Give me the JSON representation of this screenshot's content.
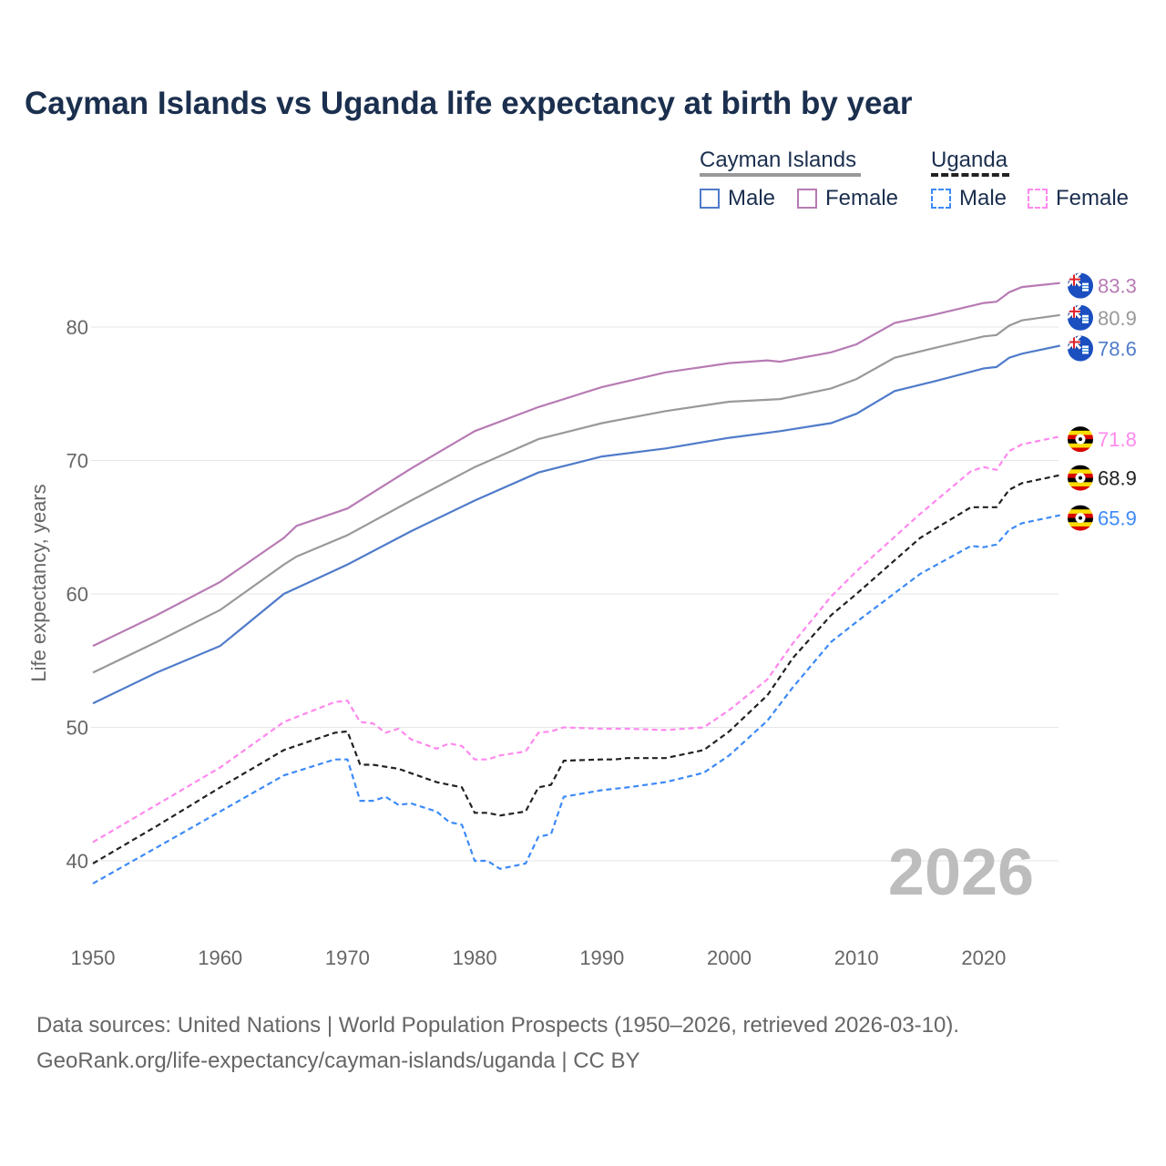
{
  "title": "Cayman Islands vs Uganda life expectancy at birth by year",
  "legend": {
    "groups": [
      {
        "name": "Cayman Islands",
        "items": [
          "Male",
          "Female"
        ]
      },
      {
        "name": "Uganda",
        "items": [
          "Male",
          "Female"
        ]
      }
    ]
  },
  "watermark_year": "2026",
  "source_lines": [
    "Data sources: United Nations | World Population Prospects (1950–2026, retrieved 2026-03-10).",
    "GeoRank.org/life-expectancy/cayman-islands/uganda | CC BY"
  ],
  "chart_data": {
    "type": "line",
    "title": "Cayman Islands vs Uganda life expectancy at birth by year",
    "xlabel": "",
    "ylabel": "Life expectancy, years",
    "xlim": [
      1950,
      2026
    ],
    "ylim": [
      35,
      86
    ],
    "x_ticks": [
      1950,
      1960,
      1970,
      1980,
      1990,
      2000,
      2010,
      2020
    ],
    "y_ticks": [
      40,
      50,
      60,
      70,
      80
    ],
    "grid": true,
    "series": [
      {
        "name": "Cayman Islands Female",
        "country": "Cayman Islands",
        "color": "#b77bb4",
        "dash": false,
        "end_label": "83.3",
        "points": [
          [
            1950,
            56.1
          ],
          [
            1955,
            58.4
          ],
          [
            1960,
            60.9
          ],
          [
            1965,
            64.2
          ],
          [
            1966,
            65.1
          ],
          [
            1970,
            66.4
          ],
          [
            1975,
            69.4
          ],
          [
            1980,
            72.2
          ],
          [
            1985,
            74.0
          ],
          [
            1990,
            75.5
          ],
          [
            1995,
            76.6
          ],
          [
            2000,
            77.3
          ],
          [
            2003,
            77.5
          ],
          [
            2004,
            77.4
          ],
          [
            2008,
            78.1
          ],
          [
            2010,
            78.7
          ],
          [
            2013,
            80.3
          ],
          [
            2016,
            80.9
          ],
          [
            2020,
            81.8
          ],
          [
            2021,
            81.9
          ],
          [
            2022,
            82.6
          ],
          [
            2023,
            83.0
          ],
          [
            2026,
            83.3
          ]
        ]
      },
      {
        "name": "Cayman Islands Total",
        "country": "Cayman Islands",
        "color": "#999999",
        "dash": false,
        "end_label": "80.9",
        "points": [
          [
            1950,
            54.1
          ],
          [
            1955,
            56.4
          ],
          [
            1960,
            58.8
          ],
          [
            1965,
            62.2
          ],
          [
            1966,
            62.8
          ],
          [
            1970,
            64.4
          ],
          [
            1975,
            67.0
          ],
          [
            1980,
            69.5
          ],
          [
            1985,
            71.6
          ],
          [
            1990,
            72.8
          ],
          [
            1995,
            73.7
          ],
          [
            2000,
            74.4
          ],
          [
            2004,
            74.6
          ],
          [
            2008,
            75.4
          ],
          [
            2010,
            76.1
          ],
          [
            2013,
            77.7
          ],
          [
            2016,
            78.4
          ],
          [
            2020,
            79.3
          ],
          [
            2021,
            79.4
          ],
          [
            2022,
            80.1
          ],
          [
            2023,
            80.5
          ],
          [
            2026,
            80.9
          ]
        ]
      },
      {
        "name": "Cayman Islands Male",
        "country": "Cayman Islands",
        "color": "#4f7bca",
        "dash": false,
        "end_label": "78.6",
        "points": [
          [
            1950,
            51.8
          ],
          [
            1955,
            54.1
          ],
          [
            1960,
            56.1
          ],
          [
            1965,
            60.0
          ],
          [
            1970,
            62.2
          ],
          [
            1975,
            64.7
          ],
          [
            1980,
            67.0
          ],
          [
            1985,
            69.1
          ],
          [
            1990,
            70.3
          ],
          [
            1995,
            70.9
          ],
          [
            2000,
            71.7
          ],
          [
            2004,
            72.2
          ],
          [
            2008,
            72.8
          ],
          [
            2010,
            73.5
          ],
          [
            2013,
            75.2
          ],
          [
            2016,
            75.9
          ],
          [
            2020,
            76.9
          ],
          [
            2021,
            77.0
          ],
          [
            2022,
            77.7
          ],
          [
            2023,
            78.0
          ],
          [
            2026,
            78.6
          ]
        ]
      },
      {
        "name": "Uganda Female",
        "country": "Uganda",
        "color": "#ff88ee",
        "dash": true,
        "end_label": "71.8",
        "points": [
          [
            1950,
            41.4
          ],
          [
            1955,
            44.2
          ],
          [
            1960,
            47.0
          ],
          [
            1965,
            50.4
          ],
          [
            1969,
            51.9
          ],
          [
            1970,
            52.0
          ],
          [
            1971,
            50.4
          ],
          [
            1972,
            50.3
          ],
          [
            1973,
            49.6
          ],
          [
            1974,
            49.9
          ],
          [
            1975,
            49.1
          ],
          [
            1977,
            48.4
          ],
          [
            1978,
            48.8
          ],
          [
            1979,
            48.6
          ],
          [
            1980,
            47.6
          ],
          [
            1981,
            47.6
          ],
          [
            1982,
            47.9
          ],
          [
            1984,
            48.2
          ],
          [
            1985,
            49.6
          ],
          [
            1986,
            49.7
          ],
          [
            1987,
            50.0
          ],
          [
            1990,
            49.9
          ],
          [
            1992,
            49.9
          ],
          [
            1995,
            49.8
          ],
          [
            1998,
            50.0
          ],
          [
            2000,
            51.3
          ],
          [
            2003,
            53.6
          ],
          [
            2005,
            56.3
          ],
          [
            2008,
            59.8
          ],
          [
            2010,
            61.7
          ],
          [
            2015,
            66.0
          ],
          [
            2019,
            69.2
          ],
          [
            2020,
            69.5
          ],
          [
            2021,
            69.3
          ],
          [
            2022,
            70.7
          ],
          [
            2023,
            71.2
          ],
          [
            2026,
            71.8
          ]
        ]
      },
      {
        "name": "Uganda Total",
        "country": "Uganda",
        "color": "#222222",
        "dash": true,
        "end_label": "68.9",
        "points": [
          [
            1950,
            39.8
          ],
          [
            1955,
            42.6
          ],
          [
            1960,
            45.5
          ],
          [
            1965,
            48.3
          ],
          [
            1969,
            49.6
          ],
          [
            1970,
            49.7
          ],
          [
            1971,
            47.2
          ],
          [
            1972,
            47.2
          ],
          [
            1974,
            46.9
          ],
          [
            1977,
            45.9
          ],
          [
            1979,
            45.5
          ],
          [
            1980,
            43.6
          ],
          [
            1981,
            43.6
          ],
          [
            1982,
            43.4
          ],
          [
            1984,
            43.7
          ],
          [
            1985,
            45.5
          ],
          [
            1986,
            45.7
          ],
          [
            1987,
            47.5
          ],
          [
            1990,
            47.6
          ],
          [
            1991,
            47.6
          ],
          [
            1992,
            47.7
          ],
          [
            1995,
            47.7
          ],
          [
            1998,
            48.3
          ],
          [
            2000,
            49.7
          ],
          [
            2003,
            52.4
          ],
          [
            2005,
            55.2
          ],
          [
            2008,
            58.4
          ],
          [
            2010,
            60.0
          ],
          [
            2015,
            64.2
          ],
          [
            2019,
            66.5
          ],
          [
            2021,
            66.5
          ],
          [
            2022,
            67.8
          ],
          [
            2023,
            68.3
          ],
          [
            2026,
            68.9
          ]
        ]
      },
      {
        "name": "Uganda Male",
        "country": "Uganda",
        "color": "#3d8af7",
        "dash": true,
        "end_label": "65.9",
        "points": [
          [
            1950,
            38.3
          ],
          [
            1955,
            41.0
          ],
          [
            1960,
            43.7
          ],
          [
            1965,
            46.4
          ],
          [
            1969,
            47.6
          ],
          [
            1970,
            47.6
          ],
          [
            1971,
            44.5
          ],
          [
            1972,
            44.5
          ],
          [
            1973,
            44.8
          ],
          [
            1974,
            44.2
          ],
          [
            1975,
            44.3
          ],
          [
            1977,
            43.7
          ],
          [
            1978,
            42.9
          ],
          [
            1979,
            42.7
          ],
          [
            1980,
            40.0
          ],
          [
            1981,
            40.0
          ],
          [
            1982,
            39.4
          ],
          [
            1984,
            39.8
          ],
          [
            1985,
            41.8
          ],
          [
            1986,
            42.0
          ],
          [
            1987,
            44.8
          ],
          [
            1990,
            45.3
          ],
          [
            1992,
            45.5
          ],
          [
            1995,
            45.9
          ],
          [
            1998,
            46.6
          ],
          [
            2000,
            47.9
          ],
          [
            2003,
            50.5
          ],
          [
            2005,
            53.0
          ],
          [
            2008,
            56.4
          ],
          [
            2010,
            57.9
          ],
          [
            2015,
            61.5
          ],
          [
            2019,
            63.6
          ],
          [
            2020,
            63.5
          ],
          [
            2021,
            63.7
          ],
          [
            2022,
            64.8
          ],
          [
            2023,
            65.3
          ],
          [
            2026,
            65.9
          ]
        ]
      }
    ]
  }
}
